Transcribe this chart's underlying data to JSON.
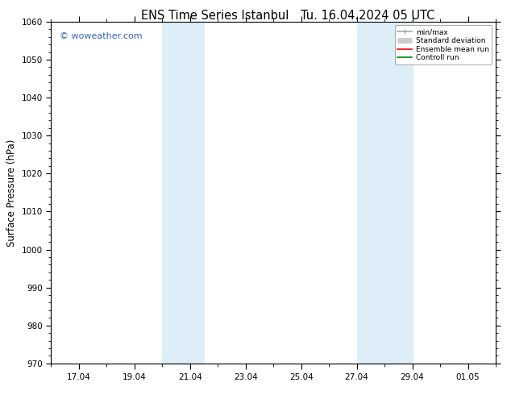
{
  "title_left": "ENS Time Series Istanbul",
  "title_right": "Tu. 16.04.2024 05 UTC",
  "ylabel": "Surface Pressure (hPa)",
  "ylim": [
    970,
    1060
  ],
  "yticks": [
    970,
    980,
    990,
    1000,
    1010,
    1020,
    1030,
    1040,
    1050,
    1060
  ],
  "xlim": [
    0,
    16
  ],
  "xtick_labels": [
    "17.04",
    "19.04",
    "21.04",
    "23.04",
    "25.04",
    "27.04",
    "29.04",
    "01.05"
  ],
  "xtick_positions": [
    1,
    3,
    5,
    7,
    9,
    11,
    13,
    15
  ],
  "shade_bands": [
    {
      "xstart": 4.0,
      "xend": 5.5
    },
    {
      "xstart": 11.0,
      "xend": 13.0
    }
  ],
  "shade_color": "#ddeef8",
  "watermark": "© woweather.com",
  "watermark_color": "#3366bb",
  "legend_items": [
    {
      "label": "min/max",
      "color": "#aaaaaa",
      "lw": 1.2
    },
    {
      "label": "Standard deviation",
      "color": "#cccccc",
      "lw": 5
    },
    {
      "label": "Ensemble mean run",
      "color": "#ff0000",
      "lw": 1.2
    },
    {
      "label": "Controll run",
      "color": "#008800",
      "lw": 1.2
    }
  ],
  "bg_color": "#ffffff",
  "axes_bg_color": "#ffffff",
  "title_fontsize": 10.5,
  "tick_fontsize": 7.5,
  "label_fontsize": 8.5,
  "watermark_fontsize": 8
}
